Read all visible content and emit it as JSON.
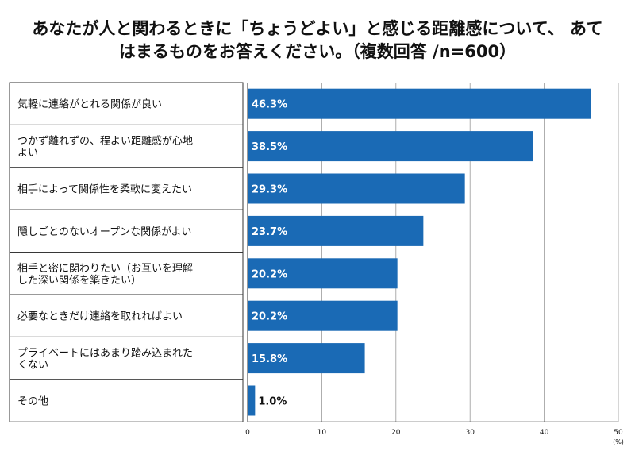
{
  "chart_data": {
    "type": "bar",
    "orientation": "horizontal",
    "title_lines": [
      "あなたが人と関わるときに「ちょうどよい」と感じる距離感について、 あて",
      "はまるものをお答えください。（複数回答 /n=600）"
    ],
    "categories": [
      [
        "気軽に連絡がとれる関係が良い"
      ],
      [
        "つかず離れずの、程よい距離感が心地",
        "よい"
      ],
      [
        "相手によって関係性を柔軟に変えたい"
      ],
      [
        "隠しごとのないオープンな関係がよい"
      ],
      [
        "相手と密に関わりたい（お互いを理解",
        "した深い関係を築きたい）"
      ],
      [
        "必要なときだけ連絡を取れればよい"
      ],
      [
        "プライベートにはあまり踏み込まれた",
        "くない"
      ],
      [
        "その他"
      ]
    ],
    "values": [
      46.3,
      38.5,
      29.3,
      23.7,
      20.2,
      20.2,
      15.8,
      1.0
    ],
    "value_labels": [
      "46.3%",
      "38.5%",
      "29.3%",
      "23.7%",
      "20.2%",
      "20.2%",
      "15.8%",
      "1.0%"
    ],
    "xlim": [
      0,
      50
    ],
    "x_ticks": [
      "0",
      "10",
      "20",
      "30",
      "40",
      "50"
    ],
    "unit": "(%)",
    "bar_color": "#1A6AB5",
    "grid": true
  }
}
